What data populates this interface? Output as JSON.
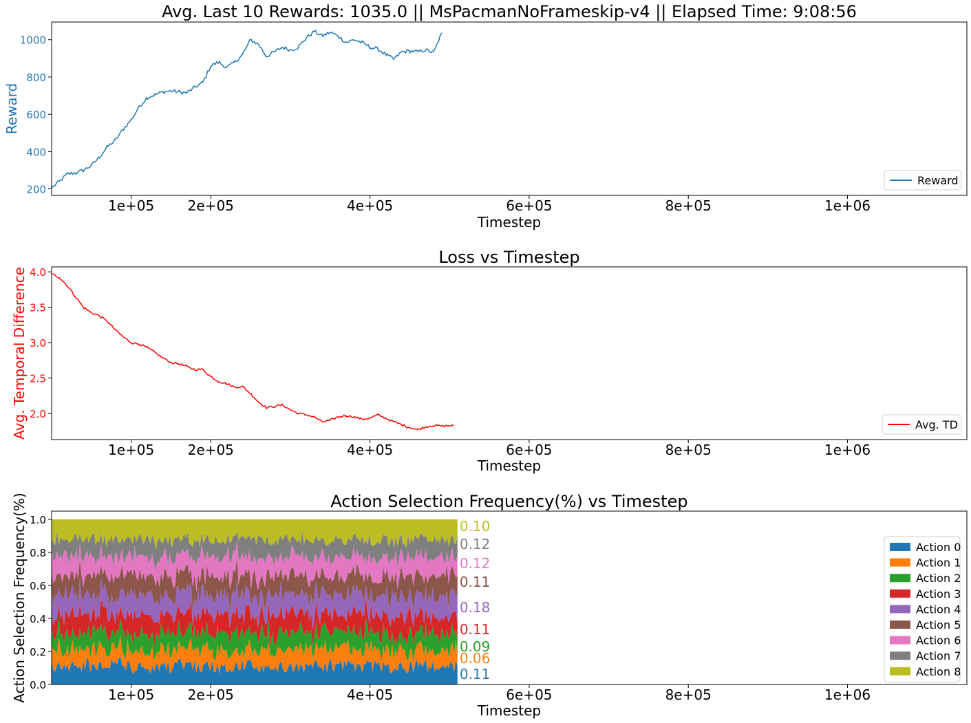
{
  "chart_data": [
    {
      "type": "line",
      "title": "Avg. Last 10 Rewards: 1035.0 || MsPacmanNoFrameskip-v4 || Elapsed Time: 9:08:56",
      "xlabel": "Timestep",
      "ylabel": "Reward",
      "xlim": [
        0,
        1150000
      ],
      "ylim": [
        165,
        1095
      ],
      "xticks": [
        100000,
        200000,
        400000,
        600000,
        800000,
        1000000
      ],
      "xtick_labels": [
        "1e+05",
        "2e+05",
        "4e+05",
        "6e+05",
        "8e+05",
        "1e+06"
      ],
      "yticks": [
        200,
        400,
        600,
        800,
        1000
      ],
      "ytick_labels": [
        "200",
        "400",
        "600",
        "800",
        "1000"
      ],
      "grid": false,
      "legend_position": "bottom-right",
      "color": "#1f77b4",
      "series": [
        {
          "name": "Reward",
          "color": "#1f77b4",
          "x": [
            0,
            10000,
            20000,
            30000,
            40000,
            50000,
            60000,
            70000,
            80000,
            90000,
            100000,
            110000,
            120000,
            130000,
            140000,
            150000,
            160000,
            170000,
            180000,
            190000,
            200000,
            210000,
            220000,
            230000,
            240000,
            250000,
            260000,
            270000,
            280000,
            290000,
            300000,
            310000,
            320000,
            330000,
            340000,
            350000,
            360000,
            370000,
            380000,
            390000,
            400000,
            410000,
            420000,
            430000,
            440000,
            450000,
            460000,
            470000,
            480000,
            490000
          ],
          "y": [
            205,
            240,
            280,
            285,
            300,
            325,
            370,
            425,
            460,
            520,
            570,
            640,
            690,
            705,
            720,
            725,
            720,
            715,
            745,
            770,
            860,
            880,
            850,
            880,
            920,
            1000,
            975,
            910,
            935,
            960,
            945,
            960,
            1010,
            1045,
            1020,
            1040,
            1020,
            985,
            1000,
            985,
            960,
            950,
            920,
            895,
            935,
            940,
            935,
            945,
            930,
            1035
          ]
        }
      ]
    },
    {
      "type": "line",
      "title": "Loss vs Timestep",
      "xlabel": "Timestep",
      "ylabel": "Avg. Temporal Difference",
      "xlim": [
        0,
        1150000
      ],
      "ylim": [
        1.63,
        4.07
      ],
      "xticks": [
        100000,
        200000,
        400000,
        600000,
        800000,
        1000000
      ],
      "xtick_labels": [
        "1e+05",
        "2e+05",
        "4e+05",
        "6e+05",
        "8e+05",
        "1e+06"
      ],
      "yticks": [
        2.0,
        2.5,
        3.0,
        3.5,
        4.0
      ],
      "ytick_labels": [
        "2.0",
        "2.5",
        "3.0",
        "3.5",
        "4.0"
      ],
      "grid": false,
      "legend_position": "bottom-right",
      "color": "#ff0000",
      "series": [
        {
          "name": "Avg. TD",
          "color": "#ff0000",
          "x": [
            0,
            10000,
            20000,
            30000,
            40000,
            50000,
            60000,
            70000,
            80000,
            90000,
            100000,
            110000,
            120000,
            130000,
            140000,
            150000,
            160000,
            170000,
            180000,
            190000,
            200000,
            210000,
            220000,
            230000,
            240000,
            250000,
            260000,
            270000,
            280000,
            290000,
            300000,
            310000,
            320000,
            330000,
            340000,
            350000,
            360000,
            370000,
            380000,
            390000,
            400000,
            410000,
            420000,
            430000,
            440000,
            450000,
            460000,
            470000,
            480000,
            490000,
            505000
          ],
          "y": [
            3.97,
            3.92,
            3.8,
            3.65,
            3.5,
            3.42,
            3.38,
            3.3,
            3.18,
            3.08,
            3.0,
            2.98,
            2.93,
            2.86,
            2.78,
            2.72,
            2.7,
            2.66,
            2.62,
            2.62,
            2.52,
            2.45,
            2.42,
            2.37,
            2.38,
            2.28,
            2.16,
            2.08,
            2.1,
            2.12,
            2.05,
            2.0,
            1.98,
            1.95,
            1.88,
            1.9,
            1.95,
            1.97,
            1.95,
            1.92,
            1.93,
            1.98,
            1.93,
            1.88,
            1.84,
            1.8,
            1.77,
            1.81,
            1.83,
            1.82,
            1.83
          ]
        }
      ]
    },
    {
      "type": "area",
      "stacked": true,
      "title": "Action Selection Frequency(%) vs Timestep",
      "xlabel": "Timestep",
      "ylabel": "Action Selection Frequency(%)",
      "xlim": [
        0,
        1150000
      ],
      "ylim": [
        0,
        1.05
      ],
      "xticks": [
        100000,
        200000,
        400000,
        600000,
        800000,
        1000000
      ],
      "xtick_labels": [
        "1e+05",
        "2e+05",
        "4e+05",
        "6e+05",
        "8e+05",
        "1e+06"
      ],
      "yticks": [
        0.0,
        0.2,
        0.4,
        0.6,
        0.8,
        1.0
      ],
      "ytick_labels": [
        "0.0",
        "0.2",
        "0.4",
        "0.6",
        "0.8",
        "1.0"
      ],
      "grid": false,
      "legend_position": "right",
      "x_end": 510000,
      "series": [
        {
          "name": "Action 0",
          "color": "#1f77b4",
          "mean": 0.11,
          "final_label": "0.11",
          "final_value": 0.11
        },
        {
          "name": "Action 1",
          "color": "#ff7f0e",
          "mean": 0.1,
          "final_label": "0.06",
          "final_value": 0.06
        },
        {
          "name": "Action 2",
          "color": "#2ca02c",
          "mean": 0.1,
          "final_label": "0.09",
          "final_value": 0.09
        },
        {
          "name": "Action 3",
          "color": "#d62728",
          "mean": 0.11,
          "final_label": "0.11",
          "final_value": 0.11
        },
        {
          "name": "Action 4",
          "color": "#9467bd",
          "mean": 0.12,
          "final_label": "0.18",
          "final_value": 0.18
        },
        {
          "name": "Action 5",
          "color": "#8c564b",
          "mean": 0.12,
          "final_label": "0.11",
          "final_value": 0.11
        },
        {
          "name": "Action 6",
          "color": "#e377c2",
          "mean": 0.12,
          "final_label": "0.12",
          "final_value": 0.12
        },
        {
          "name": "Action 7",
          "color": "#7f7f7f",
          "mean": 0.1,
          "final_label": "0.12",
          "final_value": 0.12
        },
        {
          "name": "Action 8",
          "color": "#bcbd22",
          "mean": 0.12,
          "final_label": "0.10",
          "final_value": 0.1
        }
      ]
    }
  ]
}
